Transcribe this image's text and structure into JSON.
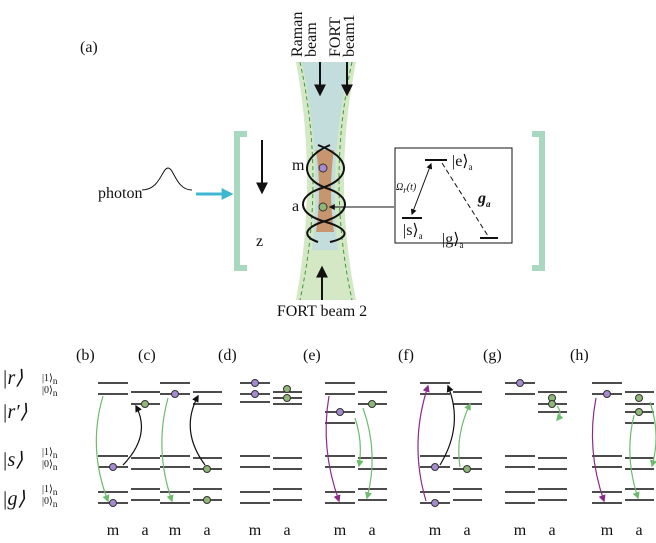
{
  "panel_a": {
    "label": "(a)",
    "raman_beam": [
      "Raman",
      "beam"
    ],
    "fort_beam1": [
      "FORT",
      "beam1"
    ],
    "photon": "photon",
    "atom_m": "m",
    "atom_a": "a",
    "axis": "z",
    "fort_beam2": "FORT beam 2",
    "inset": {
      "excited": {
        "ket": "|e⟩",
        "sub": "a"
      },
      "storage": {
        "ket": "|s⟩",
        "sub": "a"
      },
      "ground": {
        "ket": "|g⟩",
        "sub": "a"
      },
      "raman_rabi": {
        "symbol": "Ω",
        "sub": "r",
        "arg": "(t)"
      },
      "coupling": {
        "symbol": "g",
        "sub": "a"
      }
    }
  },
  "level_labels": [
    "|r⟩",
    "|r′⟩",
    "|s⟩",
    "|g⟩"
  ],
  "fock_labels": [
    {
      "ket": "|1⟩",
      "sub": "n"
    },
    {
      "ket": "|0⟩",
      "sub": "n"
    }
  ],
  "panels": [
    {
      "label": "(b)",
      "atoms": [
        "m",
        "a"
      ]
    },
    {
      "label": "(c)",
      "atoms": [
        "m",
        "a"
      ]
    },
    {
      "label": "(d)",
      "atoms": [
        "m",
        "a"
      ]
    },
    {
      "label": "(e)",
      "atoms": [
        "m",
        "a"
      ]
    },
    {
      "label": "(f)",
      "atoms": [
        "m",
        "a"
      ]
    },
    {
      "label": "(g)",
      "atoms": [
        "m",
        "a"
      ]
    },
    {
      "label": "(h)",
      "atoms": [
        "m",
        "a"
      ]
    }
  ]
}
